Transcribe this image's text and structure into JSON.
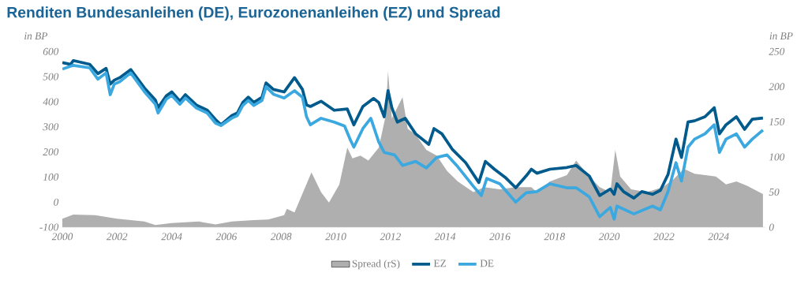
{
  "chart_data": {
    "type": "line",
    "title": "Renditen Bundesanleihen (DE), Eurozonenanleihen (EZ) und Spread",
    "ylabel": "in BP",
    "y2label": "in BP",
    "xlim": [
      2000,
      2025.7
    ],
    "xticks": [
      2000,
      2002,
      2004,
      2006,
      2008,
      2010,
      2012,
      2014,
      2016,
      2018,
      2020,
      2022,
      2024
    ],
    "ylim": [
      -100,
      600
    ],
    "yticks": [
      -100,
      0,
      100,
      200,
      300,
      400,
      500,
      600
    ],
    "y2lim": [
      0,
      250
    ],
    "y2ticks": [
      0,
      50,
      100,
      150,
      200,
      250
    ],
    "legend": "bottom",
    "grid": false,
    "series": [
      {
        "name": "Spread (rS)",
        "type": "area",
        "axis": "y2",
        "color": "#afafaf",
        "x": [
          2000,
          2000.4,
          2001.2,
          2002,
          2003,
          2003.4,
          2004,
          2005,
          2005.6,
          2006.2,
          2007,
          2007.53,
          2008.11,
          2008.21,
          2008.49,
          2008.97,
          2009.11,
          2009.46,
          2009.75,
          2010.13,
          2010.42,
          2010.61,
          2010.9,
          2011.19,
          2011.57,
          2011.82,
          2011.91,
          2012.05,
          2012.44,
          2012.63,
          2012.92,
          2013.31,
          2013.69,
          2014.07,
          2014.46,
          2015.03,
          2015.42,
          2016.0,
          2016.58,
          2017.15,
          2017.35,
          2017.83,
          2018.45,
          2018.79,
          2019.27,
          2019.65,
          2020.04,
          2020.22,
          2020.4,
          2020.8,
          2021.38,
          2021.96,
          2022.34,
          2022.73,
          2023.12,
          2023.9,
          2024.27,
          2024.65,
          2025.04,
          2025.62
        ],
        "values": [
          12,
          18,
          17,
          12,
          8,
          3,
          6,
          8,
          4,
          8,
          10,
          11,
          17,
          26,
          21,
          65,
          78,
          50,
          35,
          61,
          113,
          98,
          102,
          95,
          113,
          158,
          222,
          155,
          185,
          140,
          132,
          110,
          102,
          80,
          65,
          50,
          57,
          54,
          57,
          57,
          50,
          65,
          74,
          95,
          72,
          57,
          50,
          110,
          72,
          54,
          50,
          57,
          68,
          83,
          76,
          72,
          61,
          65,
          59,
          47
        ]
      },
      {
        "name": "EZ",
        "color": "#005a8c",
        "x": [
          2000,
          2000.3,
          2000.4,
          2001,
          2001.3,
          2001.6,
          2001.75,
          2001.9,
          2002.1,
          2002.5,
          2003,
          2003.4,
          2003.5,
          2003.8,
          2004,
          2004.3,
          2004.5,
          2004.9,
          2005.3,
          2005.6,
          2005.8,
          2006.2,
          2006.4,
          2006.6,
          2006.8,
          2007,
          2007.3,
          2007.45,
          2007.72,
          2008.11,
          2008.49,
          2008.78,
          2008.93,
          2009.07,
          2009.46,
          2009.94,
          2010.42,
          2010.66,
          2010.99,
          2011.38,
          2011.57,
          2011.77,
          2011.91,
          2012.05,
          2012.25,
          2012.54,
          2012.92,
          2013.4,
          2013.59,
          2013.88,
          2014.27,
          2014.75,
          2015.23,
          2015.47,
          2015.8,
          2016.19,
          2016.58,
          2016.96,
          2017.15,
          2017.35,
          2017.83,
          2018.45,
          2018.79,
          2019.27,
          2019.65,
          2020.04,
          2020.18,
          2020.28,
          2020.52,
          2020.9,
          2021.19,
          2021.58,
          2021.87,
          2022.15,
          2022.44,
          2022.64,
          2022.88,
          2023.12,
          2023.5,
          2023.84,
          2024.03,
          2024.27,
          2024.65,
          2024.95,
          2025.23,
          2025.62
        ],
        "values": [
          556,
          549,
          564,
          549,
          512,
          533,
          470,
          486,
          496,
          528,
          455,
          407,
          376,
          423,
          439,
          402,
          428,
          387,
          366,
          329,
          308,
          345,
          355,
          397,
          418,
          397,
          418,
          475,
          449,
          439,
          496,
          449,
          387,
          381,
          402,
          366,
          371,
          308,
          381,
          413,
          397,
          340,
          444,
          376,
          319,
          334,
          272,
          230,
          293,
          272,
          209,
          157,
          78,
          162,
          131,
          99,
          57,
          104,
          131,
          115,
          131,
          138,
          146,
          104,
          26,
          52,
          31,
          73,
          42,
          16,
          42,
          31,
          47,
          110,
          251,
          178,
          319,
          324,
          340,
          376,
          272,
          308,
          340,
          290,
          330,
          335
        ]
      },
      {
        "name": "DE",
        "color": "#3ba8e0",
        "x": [
          2000,
          2000.4,
          2001,
          2001.3,
          2001.6,
          2001.75,
          2001.9,
          2002.1,
          2002.5,
          2003,
          2003.4,
          2003.5,
          2003.8,
          2004,
          2004.3,
          2004.5,
          2004.9,
          2005.3,
          2005.6,
          2005.8,
          2006.2,
          2006.4,
          2006.6,
          2006.8,
          2007,
          2007.3,
          2007.45,
          2007.72,
          2008.11,
          2008.49,
          2008.78,
          2008.93,
          2009.07,
          2009.46,
          2009.94,
          2010.32,
          2010.52,
          2010.66,
          2010.99,
          2011.28,
          2011.57,
          2011.77,
          2012.15,
          2012.44,
          2012.92,
          2013.31,
          2013.69,
          2014.07,
          2014.46,
          2015.03,
          2015.32,
          2015.52,
          2016.0,
          2016.58,
          2016.96,
          2017.35,
          2017.83,
          2018.45,
          2018.79,
          2019.27,
          2019.65,
          2020.04,
          2020.18,
          2020.28,
          2020.9,
          2021.58,
          2021.87,
          2022.15,
          2022.44,
          2022.64,
          2022.88,
          2023.12,
          2023.5,
          2023.84,
          2024.03,
          2024.27,
          2024.65,
          2024.95,
          2025.23,
          2025.62
        ],
        "values": [
          530,
          545,
          535,
          490,
          515,
          428,
          470,
          480,
          515,
          440,
          390,
          355,
          410,
          425,
          390,
          415,
          375,
          355,
          315,
          305,
          335,
          345,
          385,
          405,
          385,
          405,
          460,
          430,
          415,
          444,
          418,
          340,
          308,
          334,
          319,
          303,
          251,
          219,
          293,
          334,
          240,
          198,
          188,
          146,
          162,
          136,
          178,
          188,
          141,
          63,
          26,
          94,
          73,
          0,
          37,
          42,
          73,
          57,
          57,
          21,
          -58,
          -21,
          -68,
          -16,
          -47,
          -16,
          -31,
          42,
          157,
          84,
          219,
          251,
          272,
          308,
          198,
          251,
          272,
          219,
          251,
          287
        ]
      }
    ]
  }
}
